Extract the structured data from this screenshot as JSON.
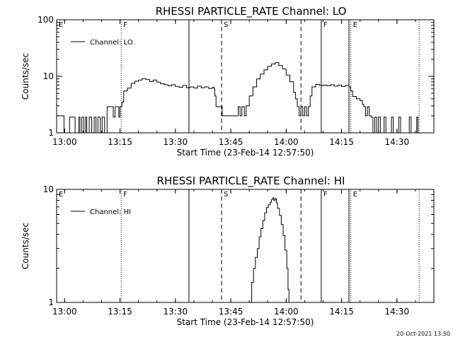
{
  "footer": {
    "timestamp": "20-Oct-2021 13:50"
  },
  "chart_data": [
    {
      "type": "line",
      "title": "RHESSI PARTICLE_RATE Channel: LO",
      "xlabel": "Start Time (23-Feb-14 12:57:50)",
      "ylabel": "Counts/sec",
      "yscale": "log",
      "ylim": [
        1,
        100
      ],
      "xlim": [
        "12:57:50",
        "14:40:00"
      ],
      "x_ticks": [
        "13:00",
        "13:15",
        "13:30",
        "13:45",
        "14:00",
        "14:15",
        "14:30"
      ],
      "y_ticks": [
        "1",
        "10",
        "100"
      ],
      "legend": {
        "label": "Channel: LO",
        "position": "top-left"
      },
      "markers": [
        {
          "time": "12:57:50",
          "style": "dotted",
          "label": "E"
        },
        {
          "time": "13:15:20",
          "style": "dotted",
          "label": "F"
        },
        {
          "time": "13:33:40",
          "style": "solid",
          "label": ""
        },
        {
          "time": "13:42:30",
          "style": "dashed",
          "label": "S"
        },
        {
          "time": "14:04:00",
          "style": "dashed",
          "label": ""
        },
        {
          "time": "14:09:30",
          "style": "solid",
          "label": "F"
        },
        {
          "time": "14:17:00",
          "style": "solid",
          "label": ""
        },
        {
          "time": "14:17:30",
          "style": "dotted",
          "label": "E"
        },
        {
          "time": "14:36:00",
          "style": "dotted",
          "label": ""
        }
      ],
      "series": [
        {
          "name": "Channel: LO",
          "points": [
            [
              "12:57:50",
              2
            ],
            [
              "12:59:30",
              2
            ],
            [
              "12:59:50",
              1
            ],
            [
              "13:01:00",
              1
            ],
            [
              "13:01:20",
              1.9
            ],
            [
              "13:02:30",
              1.9
            ],
            [
              "13:02:50",
              1
            ],
            [
              "13:03:30",
              1
            ],
            [
              "13:03:50",
              1.9
            ],
            [
              "13:04:10",
              1
            ],
            [
              "13:04:40",
              1.9
            ],
            [
              "13:05:10",
              1
            ],
            [
              "13:05:40",
              1.9
            ],
            [
              "13:06:00",
              1
            ],
            [
              "13:06:40",
              1.9
            ],
            [
              "13:07:00",
              1.9
            ],
            [
              "13:07:20",
              1
            ],
            [
              "13:08:00",
              1.9
            ],
            [
              "13:08:30",
              1
            ],
            [
              "13:09:00",
              1.9
            ],
            [
              "13:09:40",
              1
            ],
            [
              "13:10:10",
              1.9
            ],
            [
              "13:10:50",
              1
            ],
            [
              "13:11:10",
              1
            ],
            [
              "13:11:30",
              2.9
            ],
            [
              "13:13:00",
              2.9
            ],
            [
              "13:13:10",
              1.9
            ],
            [
              "13:13:40",
              2.9
            ],
            [
              "13:14:30",
              2.9
            ],
            [
              "13:14:40",
              1.9
            ],
            [
              "13:15:00",
              2.9
            ],
            [
              "13:15:30",
              3.5
            ],
            [
              "13:16:00",
              5.5
            ],
            [
              "13:17:00",
              6.2
            ],
            [
              "13:18:00",
              7.5
            ],
            [
              "13:19:00",
              8.2
            ],
            [
              "13:20:00",
              8.6
            ],
            [
              "13:21:00",
              9.1
            ],
            [
              "13:22:00",
              8.8
            ],
            [
              "13:23:00",
              8.1
            ],
            [
              "13:24:00",
              8.6
            ],
            [
              "13:25:00",
              7.9
            ],
            [
              "13:26:00",
              7.4
            ],
            [
              "13:27:00",
              7.1
            ],
            [
              "13:28:00",
              6.8
            ],
            [
              "13:29:00",
              7.1
            ],
            [
              "13:30:00",
              6.6
            ],
            [
              "13:31:00",
              6.4
            ],
            [
              "13:32:00",
              6.9
            ],
            [
              "13:33:00",
              6.3
            ],
            [
              "13:34:00",
              6.5
            ],
            [
              "13:35:00",
              6.2
            ],
            [
              "13:36:00",
              6.7
            ],
            [
              "13:37:00",
              6.3
            ],
            [
              "13:38:00",
              6.5
            ],
            [
              "13:39:00",
              6.1
            ],
            [
              "13:40:00",
              6.4
            ],
            [
              "13:40:30",
              6.0
            ],
            [
              "13:40:40",
              4.5
            ],
            [
              "13:41:00",
              2.9
            ],
            [
              "13:42:00",
              2.9
            ],
            [
              "13:42:40",
              2.0
            ],
            [
              "13:46:30",
              2.0
            ],
            [
              "13:47:00",
              2.9
            ],
            [
              "13:47:30",
              2.0
            ],
            [
              "13:48:00",
              2.9
            ],
            [
              "13:48:40",
              2.0
            ],
            [
              "13:49:10",
              3.0
            ],
            [
              "13:50:00",
              4.5
            ],
            [
              "13:51:00",
              6.5
            ],
            [
              "13:52:00",
              9.0
            ],
            [
              "13:53:00",
              11
            ],
            [
              "13:54:00",
              13
            ],
            [
              "13:55:00",
              15
            ],
            [
              "13:56:00",
              16.5
            ],
            [
              "13:57:00",
              17.5
            ],
            [
              "13:58:00",
              15.5
            ],
            [
              "13:59:00",
              13.5
            ],
            [
              "14:00:00",
              10.5
            ],
            [
              "14:01:00",
              8.0
            ],
            [
              "14:02:00",
              5.2
            ],
            [
              "14:02:30",
              4.0
            ],
            [
              "14:03:00",
              2.9
            ],
            [
              "14:03:30",
              2.0
            ],
            [
              "14:04:00",
              2.9
            ],
            [
              "14:04:30",
              2.0
            ],
            [
              "14:05:00",
              2.9
            ],
            [
              "14:05:30",
              2.0
            ],
            [
              "14:06:00",
              2.9
            ],
            [
              "14:06:30",
              4.5
            ],
            [
              "14:07:00",
              6.5
            ],
            [
              "14:08:00",
              7.2
            ],
            [
              "14:09:00",
              6.9
            ],
            [
              "14:10:00",
              7.0
            ],
            [
              "14:11:00",
              6.8
            ],
            [
              "14:12:00",
              7.1
            ],
            [
              "14:13:00",
              6.7
            ],
            [
              "14:14:00",
              7.0
            ],
            [
              "14:15:00",
              6.6
            ],
            [
              "14:16:00",
              6.9
            ],
            [
              "14:17:00",
              6.5
            ],
            [
              "14:17:30",
              5.5
            ],
            [
              "14:18:00",
              4.4
            ],
            [
              "14:19:00",
              4.0
            ],
            [
              "14:20:00",
              3.7
            ],
            [
              "14:20:40",
              3.2
            ],
            [
              "14:21:00",
              2.9
            ],
            [
              "14:21:30",
              2.0
            ],
            [
              "14:22:00",
              2.9
            ],
            [
              "14:22:30",
              2.0
            ],
            [
              "14:23:00",
              1.9
            ],
            [
              "14:23:30",
              1.0
            ],
            [
              "14:24:00",
              1.9
            ],
            [
              "14:24:30",
              1.0
            ],
            [
              "14:25:00",
              1.9
            ],
            [
              "14:25:30",
              1.0
            ],
            [
              "14:26:00",
              1.0
            ],
            [
              "14:26:30",
              1.9
            ],
            [
              "14:27:00",
              1.0
            ],
            [
              "14:28:00",
              1.0
            ],
            [
              "14:28:30",
              1.9
            ],
            [
              "14:29:00",
              1.0
            ],
            [
              "14:30:00",
              1.0
            ],
            [
              "14:30:30",
              1.9
            ],
            [
              "14:31:00",
              1.0
            ],
            [
              "14:33:00",
              1.0
            ],
            [
              "14:33:20",
              1.9
            ],
            [
              "14:33:50",
              1.0
            ],
            [
              "14:35:00",
              1.0
            ],
            [
              "14:35:20",
              1.9
            ],
            [
              "14:35:40",
              1.0
            ],
            [
              "14:36:00",
              1.0
            ]
          ]
        }
      ]
    },
    {
      "type": "line",
      "title": "RHESSI PARTICLE_RATE Channel: HI",
      "xlabel": "Start Time (23-Feb-14 12:57:50)",
      "ylabel": "Counts/sec",
      "yscale": "log",
      "ylim": [
        1,
        10
      ],
      "xlim": [
        "12:57:50",
        "14:40:00"
      ],
      "x_ticks": [
        "13:00",
        "13:15",
        "13:30",
        "13:45",
        "14:00",
        "14:15",
        "14:30"
      ],
      "y_ticks": [
        "1",
        "10"
      ],
      "legend": {
        "label": "Channel: HI",
        "position": "top-left"
      },
      "markers": [
        {
          "time": "12:57:50",
          "style": "dotted",
          "label": "E"
        },
        {
          "time": "13:15:20",
          "style": "dotted",
          "label": "F"
        },
        {
          "time": "13:33:40",
          "style": "solid",
          "label": ""
        },
        {
          "time": "13:42:30",
          "style": "dashed",
          "label": "S"
        },
        {
          "time": "14:04:00",
          "style": "dashed",
          "label": ""
        },
        {
          "time": "14:09:30",
          "style": "solid",
          "label": "F"
        },
        {
          "time": "14:17:00",
          "style": "solid",
          "label": ""
        },
        {
          "time": "14:17:30",
          "style": "dotted",
          "label": "E"
        },
        {
          "time": "14:36:00",
          "style": "dotted",
          "label": ""
        }
      ],
      "series": [
        {
          "name": "Channel: HI",
          "points": [
            [
              "13:50:10",
              1.0
            ],
            [
              "13:50:40",
              1.5
            ],
            [
              "13:51:10",
              2.0
            ],
            [
              "13:51:40",
              2.5
            ],
            [
              "13:52:10",
              3.0
            ],
            [
              "13:52:40",
              3.8
            ],
            [
              "13:53:10",
              4.5
            ],
            [
              "13:53:40",
              5.3
            ],
            [
              "13:54:10",
              6.2
            ],
            [
              "13:54:40",
              6.9
            ],
            [
              "13:55:10",
              7.3
            ],
            [
              "13:55:40",
              7.7
            ],
            [
              "13:56:00",
              8.1
            ],
            [
              "13:56:20",
              8.4
            ],
            [
              "13:56:40",
              8.0
            ],
            [
              "13:57:00",
              8.3
            ],
            [
              "13:57:20",
              7.6
            ],
            [
              "13:57:40",
              6.8
            ],
            [
              "13:58:10",
              5.9
            ],
            [
              "13:58:40",
              4.9
            ],
            [
              "13:59:10",
              3.9
            ],
            [
              "13:59:40",
              2.9
            ],
            [
              "14:00:10",
              2.0
            ],
            [
              "14:00:30",
              1.3
            ],
            [
              "14:00:45",
              1.0
            ]
          ]
        }
      ]
    }
  ]
}
